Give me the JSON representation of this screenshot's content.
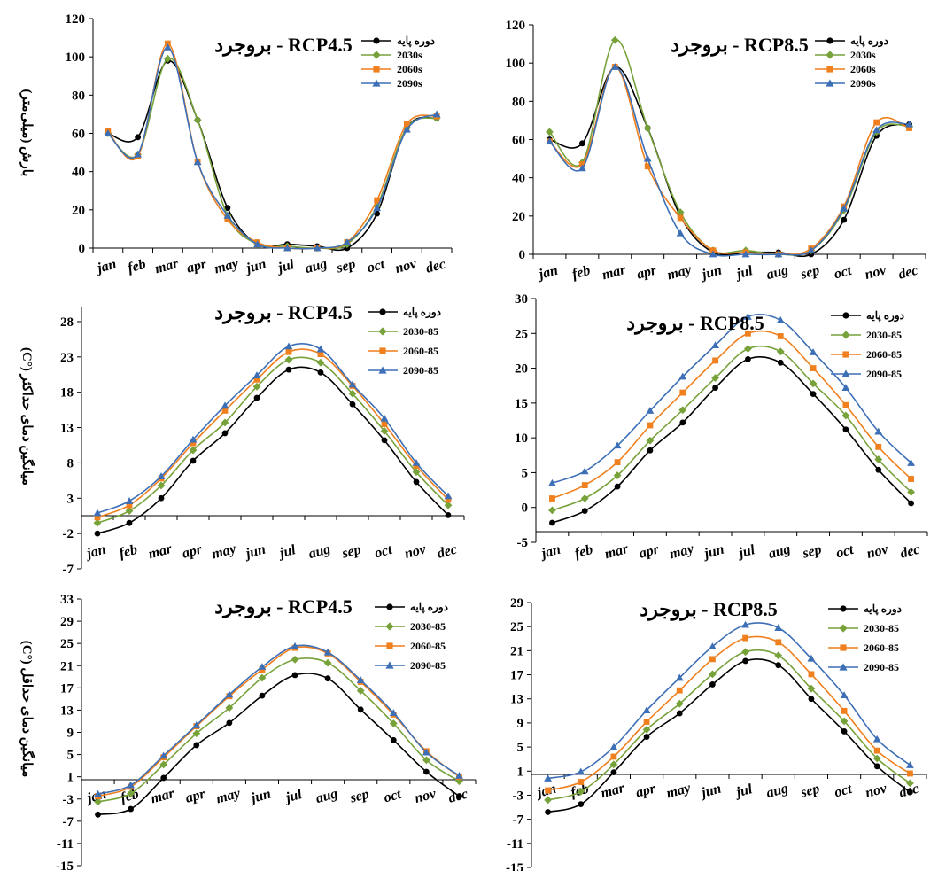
{
  "colors": {
    "base": "#000000",
    "s2030": "#77a23a",
    "s2060": "#f07f1d",
    "s2090": "#3d6fb6"
  },
  "chart_data": [
    {
      "type": "line",
      "title": "RCP4.5 - بروجرد",
      "ylabel": "بارش (میلی‌متر)",
      "xlabel": "",
      "ylim": [
        0,
        120
      ],
      "yticks": [
        0,
        20,
        40,
        60,
        80,
        100,
        120
      ],
      "grid": false,
      "legend_position": "top-right",
      "categories": [
        "jan",
        "feb",
        "mar",
        "apr",
        "may",
        "jun",
        "jul",
        "aug",
        "sep",
        "oct",
        "nov",
        "dec"
      ],
      "series": [
        {
          "name": "دوره پایه",
          "values": [
            60,
            58,
            98,
            67,
            21,
            2,
            2,
            1,
            0,
            18,
            63,
            68
          ]
        },
        {
          "name": "2030s",
          "values": [
            60,
            49,
            99,
            67,
            17,
            2,
            1,
            0,
            2,
            22,
            63,
            68
          ]
        },
        {
          "name": "2060s",
          "values": [
            61,
            48,
            107,
            45,
            15,
            3,
            0,
            0,
            3,
            25,
            65,
            69
          ]
        },
        {
          "name": "2090s",
          "values": [
            60,
            49,
            105,
            45,
            17,
            2,
            0,
            0,
            3,
            21,
            62,
            70
          ]
        }
      ]
    },
    {
      "type": "line",
      "title": "RCP8.5 - بروجرد",
      "ylabel": "",
      "xlabel": "",
      "ylim": [
        0,
        120
      ],
      "yticks": [
        0,
        20,
        40,
        60,
        80,
        100,
        120
      ],
      "grid": false,
      "legend_position": "top-right",
      "categories": [
        "jan",
        "feb",
        "mar",
        "apr",
        "may",
        "jun",
        "jul",
        "aug",
        "sep",
        "oct",
        "nov",
        "dec"
      ],
      "series": [
        {
          "name": "دوره پایه",
          "values": [
            60,
            58,
            98,
            66,
            20,
            1,
            1,
            1,
            0,
            18,
            62,
            68
          ]
        },
        {
          "name": "2030s",
          "values": [
            64,
            48,
            112,
            66,
            22,
            2,
            2,
            0,
            2,
            23,
            64,
            67
          ]
        },
        {
          "name": "2060s",
          "values": [
            59,
            47,
            98,
            46,
            19,
            2,
            1,
            0,
            3,
            25,
            69,
            66
          ]
        },
        {
          "name": "2090s",
          "values": [
            59,
            45,
            98,
            50,
            11,
            0,
            0,
            0,
            2,
            24,
            65,
            68
          ]
        }
      ]
    },
    {
      "type": "line",
      "title": "RCP4.5 - بروجرد",
      "ylabel": "میانگین دمای حداکثر (°C)",
      "xlabel": "",
      "ylim": [
        -7,
        30
      ],
      "yticks": [
        -7,
        -2,
        3,
        8,
        13,
        18,
        23,
        28
      ],
      "grid": false,
      "legend_position": "top-right",
      "categories": [
        "jan",
        "feb",
        "mar",
        "apr",
        "may",
        "jun",
        "jul",
        "aug",
        "sep",
        "oct",
        "nov",
        "dec"
      ],
      "series": [
        {
          "name": "دوره پایه",
          "values": [
            -2.0,
            -0.5,
            3.0,
            8.3,
            12.2,
            17.2,
            21.2,
            20.8,
            16.3,
            11.2,
            5.3,
            0.6
          ]
        },
        {
          "name": "2030-85",
          "values": [
            -0.5,
            1.2,
            4.8,
            9.8,
            13.7,
            18.8,
            22.6,
            22.2,
            17.8,
            12.5,
            6.7,
            2.0
          ]
        },
        {
          "name": "2060-85",
          "values": [
            0.3,
            2.0,
            5.8,
            10.8,
            15.4,
            19.8,
            23.7,
            23.4,
            18.9,
            13.5,
            7.6,
            2.8
          ]
        },
        {
          "name": "2090-85",
          "values": [
            0.9,
            2.6,
            6.1,
            11.3,
            16.1,
            20.4,
            24.5,
            24.1,
            19.1,
            14.3,
            8.0,
            3.3
          ]
        }
      ]
    },
    {
      "type": "line",
      "title": "RCP8.5 - بروجرد",
      "ylabel": "",
      "xlabel": "",
      "ylim": [
        -5,
        30
      ],
      "yticks": [
        -5,
        0,
        5,
        10,
        15,
        20,
        25,
        30
      ],
      "grid": false,
      "legend_position": "top-right",
      "categories": [
        "jan",
        "feb",
        "mar",
        "apr",
        "may",
        "jun",
        "jul",
        "aug",
        "sep",
        "oct",
        "nov",
        "dec"
      ],
      "series": [
        {
          "name": "دوره پایه",
          "values": [
            -2.2,
            -0.5,
            3.0,
            8.2,
            12.2,
            17.2,
            21.3,
            20.8,
            16.3,
            11.2,
            5.4,
            0.6
          ]
        },
        {
          "name": "2030-85",
          "values": [
            -0.4,
            1.3,
            4.6,
            9.6,
            14.0,
            18.6,
            22.8,
            22.4,
            17.8,
            13.2,
            6.9,
            2.2
          ]
        },
        {
          "name": "2060-85",
          "values": [
            1.3,
            3.2,
            6.5,
            11.8,
            16.5,
            21.1,
            25.0,
            24.6,
            20.0,
            14.7,
            8.7,
            4.1
          ]
        },
        {
          "name": "2090-85",
          "values": [
            3.5,
            5.2,
            8.9,
            13.9,
            18.8,
            23.3,
            27.4,
            26.9,
            22.3,
            17.2,
            10.9,
            6.4
          ]
        }
      ]
    },
    {
      "type": "line",
      "title": "RCP4.5 - بروجرد",
      "ylabel": "میانگین دمای حداقل (°C)",
      "xlabel": "",
      "ylim": [
        -15,
        33
      ],
      "yticks": [
        -15,
        -11,
        -7,
        -3,
        1,
        5,
        9,
        13,
        17,
        21,
        25,
        29,
        33
      ],
      "grid": false,
      "legend_position": "top-right",
      "categories": [
        "jan",
        "feb",
        "mar",
        "apr",
        "may",
        "jun",
        "jul",
        "aug",
        "sep",
        "oct",
        "nov",
        "dec"
      ],
      "series": [
        {
          "name": "دوره پایه",
          "values": [
            -5.8,
            -4.8,
            0.8,
            6.7,
            10.7,
            15.6,
            19.3,
            18.7,
            13.1,
            7.6,
            1.9,
            -2.5
          ]
        },
        {
          "name": "2030-85",
          "values": [
            -3.5,
            -2.0,
            3.2,
            8.8,
            13.4,
            18.8,
            22.1,
            21.5,
            16.5,
            10.6,
            4.0,
            0.2
          ]
        },
        {
          "name": "2060-85",
          "values": [
            -2.5,
            -0.8,
            4.5,
            10.1,
            15.5,
            20.3,
            24.2,
            23.2,
            18.1,
            12.2,
            5.6,
            1.0
          ]
        },
        {
          "name": "2090-85",
          "values": [
            -2.1,
            -0.5,
            4.8,
            10.3,
            15.8,
            20.8,
            24.5,
            23.4,
            18.4,
            12.5,
            5.4,
            1.2
          ]
        }
      ]
    },
    {
      "type": "line",
      "title": "RCP8.5 - بروجرد",
      "ylabel": "",
      "xlabel": "",
      "ylim": [
        -15,
        29
      ],
      "yticks": [
        -15,
        -11,
        -7,
        -3,
        1,
        5,
        9,
        13,
        17,
        21,
        25,
        29
      ],
      "grid": false,
      "legend_position": "top-right",
      "categories": [
        "jan",
        "feb",
        "mar",
        "apr",
        "may",
        "jun",
        "jul",
        "aug",
        "sep",
        "oct",
        "nov",
        "dec"
      ],
      "series": [
        {
          "name": "دوره پایه",
          "values": [
            -5.8,
            -4.5,
            0.8,
            6.7,
            10.6,
            15.4,
            19.3,
            18.6,
            13.0,
            7.6,
            1.8,
            -2.5
          ]
        },
        {
          "name": "2030-85",
          "values": [
            -3.8,
            -2.4,
            2.1,
            7.9,
            12.2,
            17.1,
            20.8,
            20.2,
            14.7,
            9.3,
            3.1,
            -1.0
          ]
        },
        {
          "name": "2060-85",
          "values": [
            -2.2,
            -0.8,
            3.4,
            9.2,
            14.4,
            19.6,
            23.1,
            22.4,
            17.1,
            11.0,
            4.4,
            0.6
          ]
        },
        {
          "name": "2090-85",
          "values": [
            -0.2,
            0.9,
            5.0,
            11.1,
            16.5,
            21.7,
            25.3,
            24.8,
            19.7,
            13.6,
            6.3,
            2.0
          ]
        }
      ]
    }
  ]
}
